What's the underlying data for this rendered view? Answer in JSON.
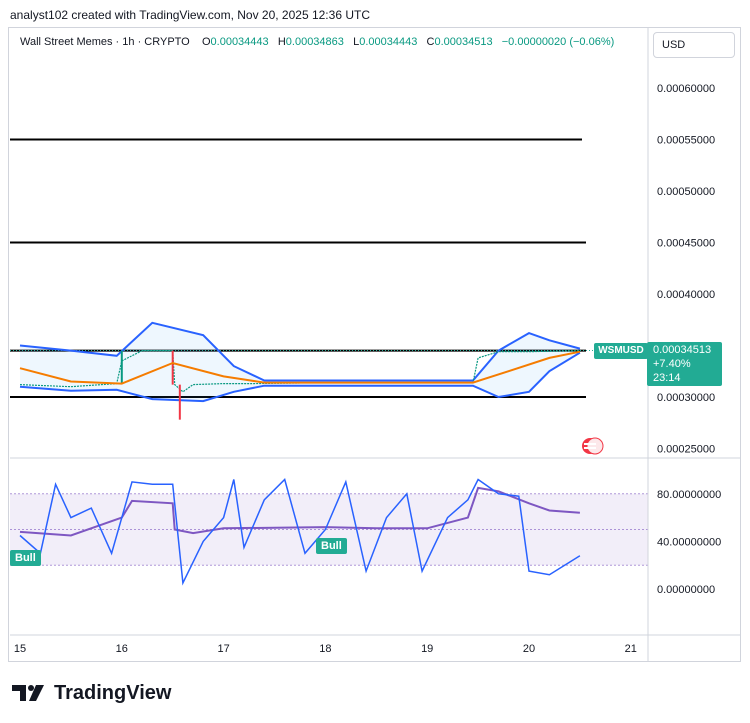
{
  "header": {
    "text": "analyst102 created with TradingView.com, Nov 20, 2025 12:36 UTC"
  },
  "legend": {
    "symbol": "Wall Street Memes · 1h · CRYPTO",
    "open_label": "O",
    "open": "0.00034443",
    "high_label": "H",
    "high": "0.00034863",
    "low_label": "L",
    "low": "0.00034443",
    "close_label": "C",
    "close": "0.00034513",
    "change": "−0.00000020 (−0.06%)"
  },
  "currency": "USD",
  "price_tag": {
    "ticker": "WSMUSD",
    "price": "0.00034513",
    "change": "+7.40%",
    "countdown": "23:14"
  },
  "bull_labels": [
    "Bull",
    "Bull"
  ],
  "logo": {
    "text": "TradingView"
  },
  "colors": {
    "candle_up": "#089981",
    "candle_down": "#f23645",
    "bollinger": "#2962ff",
    "ma": "#f57c00",
    "rsi": "#7e57c2",
    "stoch": "#2962ff",
    "accent": "#22ab94"
  },
  "chart_data": [
    {
      "type": "candlestick",
      "title": "Wall Street Memes · 1h · CRYPTO",
      "x_ticks": [
        "15",
        "16",
        "17",
        "18",
        "19",
        "20",
        "21"
      ],
      "y_ticks": [
        "0.00060000",
        "0.00055000",
        "0.00050000",
        "0.00045000",
        "0.00040000",
        "0.00030000",
        "0.00025000"
      ],
      "ylim": [
        0.00022,
        0.00062
      ],
      "horizontal_levels": [
        0.00055,
        0.00045,
        0.000345,
        0.0003
      ],
      "last_price": 0.00034513,
      "price_path": [
        [
          15.0,
          0.000312
        ],
        [
          15.5,
          0.00031
        ],
        [
          15.95,
          0.000313
        ],
        [
          16.0,
          0.000335
        ],
        [
          16.2,
          0.000345
        ],
        [
          16.5,
          0.000345
        ],
        [
          16.52,
          0.000312
        ],
        [
          16.6,
          0.000305
        ],
        [
          16.7,
          0.000312
        ],
        [
          17.0,
          0.000313
        ],
        [
          17.3,
          0.000313
        ],
        [
          18.0,
          0.000314
        ],
        [
          19.0,
          0.000314
        ],
        [
          19.45,
          0.000314
        ],
        [
          19.5,
          0.000338
        ],
        [
          19.7,
          0.000344
        ],
        [
          20.0,
          0.000344
        ],
        [
          20.5,
          0.000345
        ]
      ],
      "ma_path": [
        [
          15.0,
          0.000328
        ],
        [
          15.5,
          0.000315
        ],
        [
          16.0,
          0.000313
        ],
        [
          16.5,
          0.000333
        ],
        [
          17.0,
          0.00032
        ],
        [
          17.4,
          0.000314
        ],
        [
          19.45,
          0.000314
        ],
        [
          19.8,
          0.000325
        ],
        [
          20.2,
          0.000338
        ],
        [
          20.5,
          0.000344
        ]
      ],
      "bollinger_upper": [
        [
          15.0,
          0.00035
        ],
        [
          15.5,
          0.000345
        ],
        [
          15.95,
          0.00034
        ],
        [
          16.3,
          0.000372
        ],
        [
          16.8,
          0.00036
        ],
        [
          17.1,
          0.00033
        ],
        [
          17.4,
          0.000316
        ],
        [
          19.45,
          0.000316
        ],
        [
          19.7,
          0.000345
        ],
        [
          20.0,
          0.000362
        ],
        [
          20.2,
          0.000355
        ],
        [
          20.5,
          0.000347
        ]
      ],
      "bollinger_lower": [
        [
          15.0,
          0.00031
        ],
        [
          15.5,
          0.000306
        ],
        [
          15.95,
          0.000307
        ],
        [
          16.3,
          0.000298
        ],
        [
          16.8,
          0.000296
        ],
        [
          17.1,
          0.000305
        ],
        [
          17.4,
          0.000311
        ],
        [
          19.45,
          0.000311
        ],
        [
          19.7,
          0.0003
        ],
        [
          20.0,
          0.000305
        ],
        [
          20.2,
          0.000325
        ],
        [
          20.5,
          0.000343
        ]
      ]
    },
    {
      "type": "line",
      "title": "",
      "x_ticks": [
        "15",
        "16",
        "17",
        "18",
        "19",
        "20",
        "21"
      ],
      "y_ticks": [
        "80.00000000",
        "40.00000000",
        "0.00000000"
      ],
      "ylim": [
        -20,
        100
      ],
      "band": [
        20,
        80
      ],
      "mid_level": 50,
      "series": [
        {
          "values": [
            [
              15.0,
              48
            ],
            [
              15.5,
              45
            ],
            [
              16.0,
              60
            ],
            [
              16.1,
              74
            ],
            [
              16.5,
              72
            ],
            [
              16.52,
              50
            ],
            [
              16.7,
              47
            ],
            [
              17.0,
              51
            ],
            [
              18.0,
              52
            ],
            [
              18.5,
              51
            ],
            [
              19.0,
              51
            ],
            [
              19.4,
              60
            ],
            [
              19.5,
              85
            ],
            [
              19.7,
              82
            ],
            [
              20.0,
              72
            ],
            [
              20.2,
              66
            ],
            [
              20.5,
              64
            ]
          ]
        },
        {
          "values": [
            [
              15.0,
              45
            ],
            [
              15.2,
              30
            ],
            [
              15.35,
              88
            ],
            [
              15.5,
              60
            ],
            [
              15.7,
              68
            ],
            [
              15.9,
              30
            ],
            [
              16.1,
              90
            ],
            [
              16.3,
              88
            ],
            [
              16.5,
              88
            ],
            [
              16.6,
              5
            ],
            [
              16.8,
              40
            ],
            [
              17.0,
              60
            ],
            [
              17.1,
              92
            ],
            [
              17.2,
              35
            ],
            [
              17.4,
              75
            ],
            [
              17.6,
              92
            ],
            [
              17.8,
              30
            ],
            [
              18.0,
              50
            ],
            [
              18.2,
              90
            ],
            [
              18.4,
              15
            ],
            [
              18.6,
              60
            ],
            [
              18.8,
              80
            ],
            [
              18.95,
              15
            ],
            [
              19.2,
              60
            ],
            [
              19.4,
              75
            ],
            [
              19.5,
              92
            ],
            [
              19.7,
              80
            ],
            [
              19.9,
              78
            ],
            [
              20.0,
              15
            ],
            [
              20.2,
              12
            ],
            [
              20.5,
              28
            ]
          ]
        }
      ]
    }
  ]
}
